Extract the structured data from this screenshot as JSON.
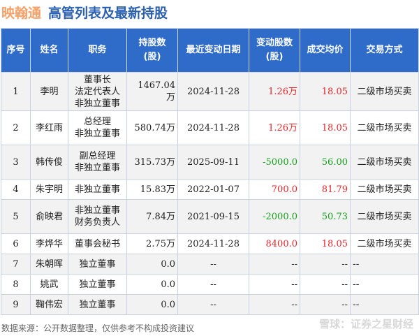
{
  "header": {
    "brand": "映翰通",
    "title": "高管列表及最新持股"
  },
  "columns": [
    "序号",
    "姓名",
    "职务",
    "持股数\n(股)",
    "最近变动日期",
    "变动股数\n(股)",
    "成交均价",
    "交易方式"
  ],
  "rows": [
    {
      "no": "1",
      "name": "李明",
      "role": "董事长\n法定代表人\n非独立董事",
      "shares": "1467.04万",
      "date": "2024-11-28",
      "change": "1.26万",
      "price": "18.05",
      "method": "二级市场买卖",
      "dir": "up"
    },
    {
      "no": "2",
      "name": "李红雨",
      "role": "总经理\n非独立董事",
      "shares": "580.74万",
      "date": "2024-11-28",
      "change": "1.26万",
      "price": "18.05",
      "method": "二级市场买卖",
      "dir": "up"
    },
    {
      "no": "3",
      "name": "韩传俊",
      "role": "副总经理\n非独立董事",
      "shares": "315.73万",
      "date": "2025-09-11",
      "change": "-5000.0",
      "price": "56.00",
      "method": "二级市场买卖",
      "dir": "down"
    },
    {
      "no": "4",
      "name": "朱宇明",
      "role": "非独立董事",
      "shares": "15.83万",
      "date": "2022-01-07",
      "change": "700.0",
      "price": "81.79",
      "method": "二级市场买卖",
      "dir": "up"
    },
    {
      "no": "5",
      "name": "俞映君",
      "role": "非独立董事\n财务负责人",
      "shares": "7.84万",
      "date": "2021-09-15",
      "change": "-2000.0",
      "price": "50.73",
      "method": "二级市场买卖",
      "dir": "down"
    },
    {
      "no": "6",
      "name": "李烨华",
      "role": "董事会秘书",
      "shares": "2.75万",
      "date": "2024-11-28",
      "change": "8400.0",
      "price": "18.05",
      "method": "二级市场买卖",
      "dir": "up"
    },
    {
      "no": "7",
      "name": "朱朝晖",
      "role": "独立董事",
      "shares": "0.0",
      "date": "--",
      "change": "--",
      "price": "--",
      "method": "--",
      "dir": "none"
    },
    {
      "no": "8",
      "name": "姚武",
      "role": "独立董事",
      "shares": "0.0",
      "date": "--",
      "change": "--",
      "price": "--",
      "method": "--",
      "dir": "none"
    },
    {
      "no": "9",
      "name": "鞠伟宏",
      "role": "独立董事",
      "shares": "0.0",
      "date": "--",
      "change": "--",
      "price": "--",
      "method": "--",
      "dir": "none"
    }
  ],
  "footer": {
    "source": "数据来源：公开数据整理，仅供参考不构成投资建议",
    "watermark": "雪球：证券之星财经"
  },
  "colors": {
    "header_bg": "#2f6bc9",
    "up": "#e8262b",
    "down": "#17a01e",
    "brand": "#f5a26a"
  }
}
